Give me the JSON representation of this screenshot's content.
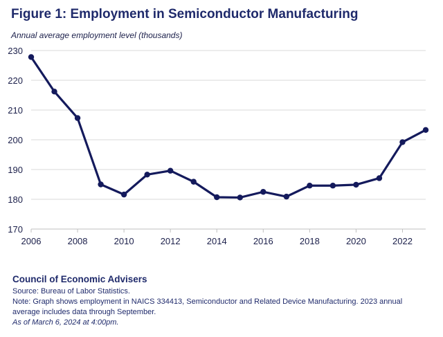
{
  "chart_data": {
    "type": "line",
    "title": "Figure 1: Employment in Semiconductor Manufacturing",
    "ylabel": "Annual average employment level (thousands)",
    "xlabel": "",
    "x": [
      2006,
      2007,
      2008,
      2009,
      2010,
      2011,
      2012,
      2013,
      2014,
      2015,
      2016,
      2017,
      2018,
      2019,
      2020,
      2021,
      2022,
      2023
    ],
    "series": [
      {
        "name": "Employment",
        "values": [
          227.8,
          216.2,
          207.3,
          185.0,
          181.6,
          188.3,
          189.6,
          185.9,
          180.7,
          180.6,
          182.5,
          180.9,
          184.6,
          184.6,
          184.9,
          187.1,
          199.2,
          203.3
        ],
        "color": "#141a5c"
      }
    ],
    "xticks": [
      "2006",
      "2008",
      "2010",
      "2012",
      "2014",
      "2016",
      "2018",
      "2020",
      "2022"
    ],
    "yticks": [
      "170",
      "180",
      "190",
      "200",
      "210",
      "220",
      "230"
    ],
    "xlim": [
      2006,
      2023
    ],
    "ylim": [
      170,
      230
    ],
    "grid": "horizontal",
    "grid_color": "#d9d9d9"
  },
  "footer": {
    "org": "Council of Economic Advisers",
    "source": "Source: Bureau of Labor Statistics.",
    "note": "Note: Graph shows employment in NAICS 334413, Semiconductor and Related Device Manufacturing. 2023 annual average includes data through September.",
    "date": "As of March 6, 2024 at 4:00pm."
  }
}
